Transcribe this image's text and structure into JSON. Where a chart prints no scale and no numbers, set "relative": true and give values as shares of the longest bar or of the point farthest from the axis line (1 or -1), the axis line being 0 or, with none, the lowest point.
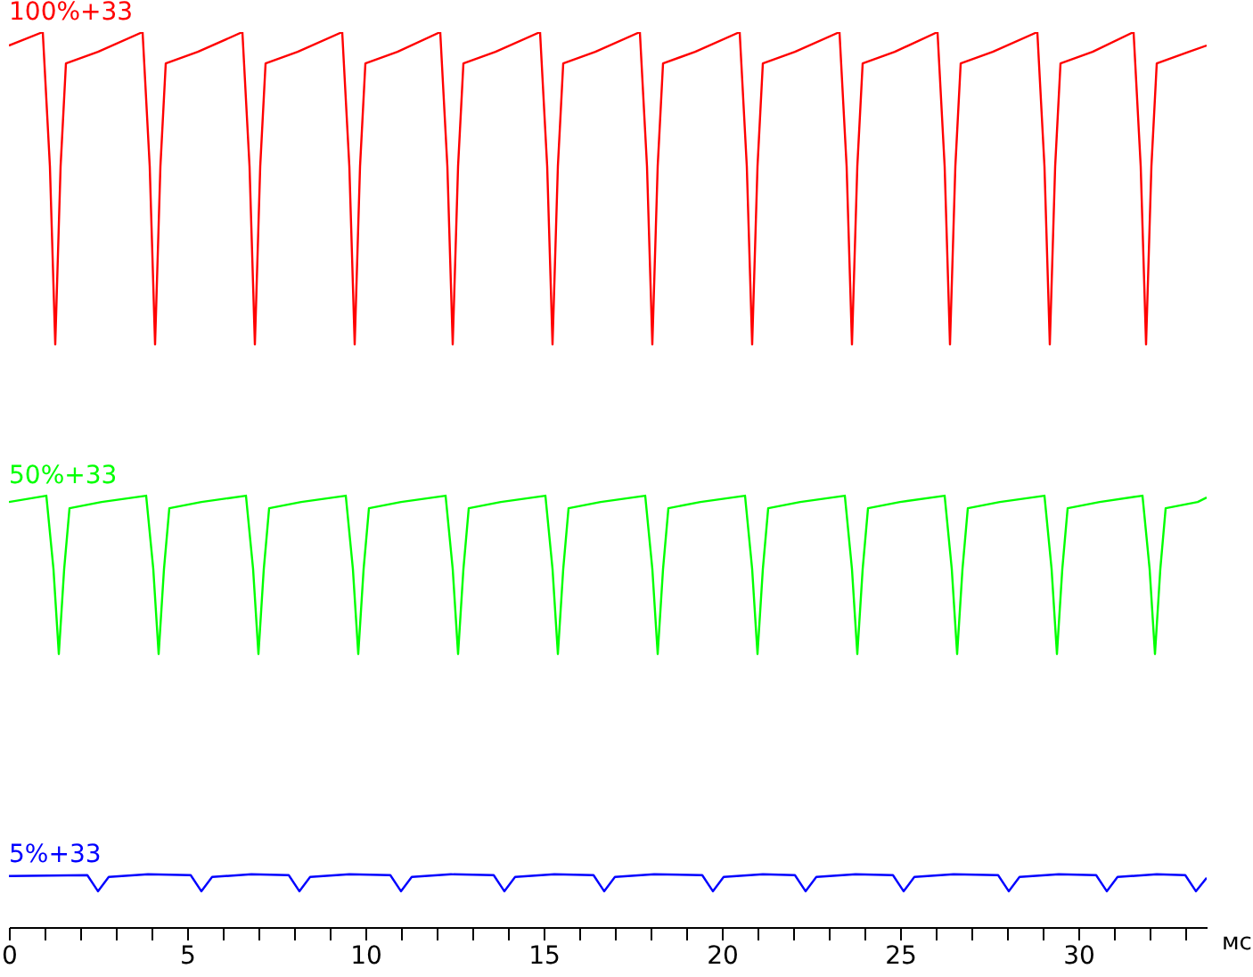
{
  "chart_data": {
    "type": "line",
    "relative": true,
    "xlabel": "мс",
    "xlim": [
      0,
      33.6
    ],
    "xticks": [
      0,
      {
        "value": 1,
        "label": null
      },
      {
        "value": 2,
        "label": null
      },
      {
        "value": 3,
        "label": null
      },
      {
        "value": 4,
        "label": null
      },
      5,
      {
        "value": 6,
        "label": null
      },
      {
        "value": 7,
        "label": null
      },
      {
        "value": 8,
        "label": null
      },
      {
        "value": 9,
        "label": null
      },
      10,
      {
        "value": 11,
        "label": null
      },
      {
        "value": 12,
        "label": null
      },
      {
        "value": 13,
        "label": null
      },
      {
        "value": 14,
        "label": null
      },
      15,
      {
        "value": 16,
        "label": null
      },
      {
        "value": 17,
        "label": null
      },
      {
        "value": 18,
        "label": null
      },
      {
        "value": 19,
        "label": null
      },
      20,
      {
        "value": 21,
        "label": null
      },
      {
        "value": 22,
        "label": null
      },
      {
        "value": 23,
        "label": null
      },
      {
        "value": 24,
        "label": null
      },
      25,
      {
        "value": 26,
        "label": null
      },
      {
        "value": 27,
        "label": null
      },
      {
        "value": 28,
        "label": null
      },
      {
        "value": 29,
        "label": null
      },
      30,
      {
        "value": 31,
        "label": null
      },
      {
        "value": 32,
        "label": null
      },
      {
        "value": 33,
        "label": null
      }
    ],
    "grid": false,
    "series": [
      {
        "name": "100%+33",
        "color": "#ff0000",
        "x": [
          0,
          0.95,
          1.15,
          1.3,
          1.45,
          1.6,
          2.5,
          3.75,
          3.95,
          4.1,
          4.25,
          4.4,
          5.3,
          6.55,
          6.75,
          6.9,
          7.05,
          7.2,
          8.1,
          9.35,
          9.55,
          9.7,
          9.85,
          10.0,
          10.9,
          12.1,
          12.3,
          12.45,
          12.6,
          12.75,
          13.65,
          14.9,
          15.1,
          15.25,
          15.4,
          15.55,
          16.45,
          17.7,
          17.9,
          18.05,
          18.2,
          18.35,
          19.25,
          20.5,
          20.7,
          20.85,
          21.0,
          21.15,
          22.05,
          23.3,
          23.5,
          23.65,
          23.8,
          23.95,
          24.85,
          26.05,
          26.25,
          26.4,
          26.55,
          26.7,
          27.6,
          28.85,
          29.05,
          29.2,
          29.35,
          29.5,
          30.4,
          31.55,
          31.75,
          31.9,
          32.05,
          32.2,
          33.1,
          33.6
        ],
        "values": [
          0.985,
          1,
          0.85,
          0.651,
          0.85,
          0.965,
          0.978,
          1,
          0.85,
          0.651,
          0.85,
          0.965,
          0.978,
          1,
          0.85,
          0.651,
          0.85,
          0.965,
          0.978,
          1,
          0.85,
          0.651,
          0.85,
          0.965,
          0.978,
          1,
          0.85,
          0.651,
          0.85,
          0.965,
          0.978,
          1,
          0.85,
          0.651,
          0.85,
          0.965,
          0.978,
          1,
          0.85,
          0.651,
          0.85,
          0.965,
          0.978,
          1,
          0.85,
          0.651,
          0.85,
          0.965,
          0.978,
          1,
          0.85,
          0.651,
          0.85,
          0.965,
          0.978,
          1,
          0.85,
          0.651,
          0.85,
          0.965,
          0.978,
          1,
          0.85,
          0.651,
          0.85,
          0.965,
          0.978,
          1,
          0.85,
          0.651,
          0.85,
          0.965,
          0.978,
          0.985
        ]
      },
      {
        "name": "50%+33",
        "color": "#00ff00",
        "x": [
          0,
          1.05,
          1.25,
          1.4,
          1.55,
          1.7,
          2.6,
          3.85,
          4.05,
          4.2,
          4.35,
          4.5,
          5.4,
          6.65,
          6.85,
          7.0,
          7.15,
          7.3,
          8.2,
          9.45,
          9.65,
          9.8,
          9.95,
          10.1,
          11.0,
          12.25,
          12.45,
          12.6,
          12.75,
          12.9,
          13.8,
          15.05,
          15.25,
          15.4,
          15.55,
          15.7,
          16.6,
          17.85,
          18.05,
          18.2,
          18.35,
          18.5,
          19.4,
          20.65,
          20.85,
          21.0,
          21.15,
          21.3,
          22.2,
          23.45,
          23.65,
          23.8,
          23.95,
          24.1,
          25.0,
          26.25,
          26.45,
          26.6,
          26.75,
          26.9,
          27.8,
          29.05,
          29.25,
          29.4,
          29.55,
          29.7,
          30.6,
          31.8,
          32.0,
          32.15,
          32.3,
          32.45,
          33.35,
          33.6
        ],
        "values": [
          0.475,
          0.482,
          0.4,
          0.305,
          0.4,
          0.468,
          0.475,
          0.482,
          0.4,
          0.305,
          0.4,
          0.468,
          0.475,
          0.482,
          0.4,
          0.305,
          0.4,
          0.468,
          0.475,
          0.482,
          0.4,
          0.305,
          0.4,
          0.468,
          0.475,
          0.482,
          0.4,
          0.305,
          0.4,
          0.468,
          0.475,
          0.482,
          0.4,
          0.305,
          0.4,
          0.468,
          0.475,
          0.482,
          0.4,
          0.305,
          0.4,
          0.468,
          0.475,
          0.482,
          0.4,
          0.305,
          0.4,
          0.468,
          0.475,
          0.482,
          0.4,
          0.305,
          0.4,
          0.468,
          0.475,
          0.482,
          0.4,
          0.305,
          0.4,
          0.468,
          0.475,
          0.482,
          0.4,
          0.305,
          0.4,
          0.468,
          0.475,
          0.482,
          0.4,
          0.305,
          0.4,
          0.468,
          0.475,
          0.48
        ]
      },
      {
        "name": "5%+33",
        "color": "#0000ff",
        "x": [
          0,
          2.2,
          2.5,
          2.8,
          3.9,
          5.1,
          5.4,
          5.7,
          6.8,
          7.85,
          8.15,
          8.45,
          9.55,
          10.7,
          11.0,
          11.3,
          12.4,
          13.6,
          13.9,
          14.2,
          15.3,
          16.4,
          16.7,
          17.0,
          18.1,
          19.45,
          19.75,
          20.05,
          21.15,
          22.05,
          22.35,
          22.65,
          23.75,
          24.8,
          25.1,
          25.4,
          26.5,
          27.75,
          28.05,
          28.35,
          29.45,
          30.5,
          30.8,
          31.1,
          32.2,
          33.0,
          33.3,
          33.6
        ],
        "values": [
          0.057,
          0.058,
          0.04,
          0.056,
          0.059,
          0.058,
          0.04,
          0.056,
          0.059,
          0.058,
          0.04,
          0.056,
          0.059,
          0.058,
          0.04,
          0.056,
          0.059,
          0.058,
          0.04,
          0.056,
          0.059,
          0.058,
          0.04,
          0.056,
          0.059,
          0.058,
          0.04,
          0.056,
          0.059,
          0.058,
          0.04,
          0.056,
          0.059,
          0.058,
          0.04,
          0.056,
          0.059,
          0.058,
          0.04,
          0.056,
          0.059,
          0.058,
          0.04,
          0.056,
          0.059,
          0.058,
          0.04,
          0.055
        ]
      }
    ]
  }
}
